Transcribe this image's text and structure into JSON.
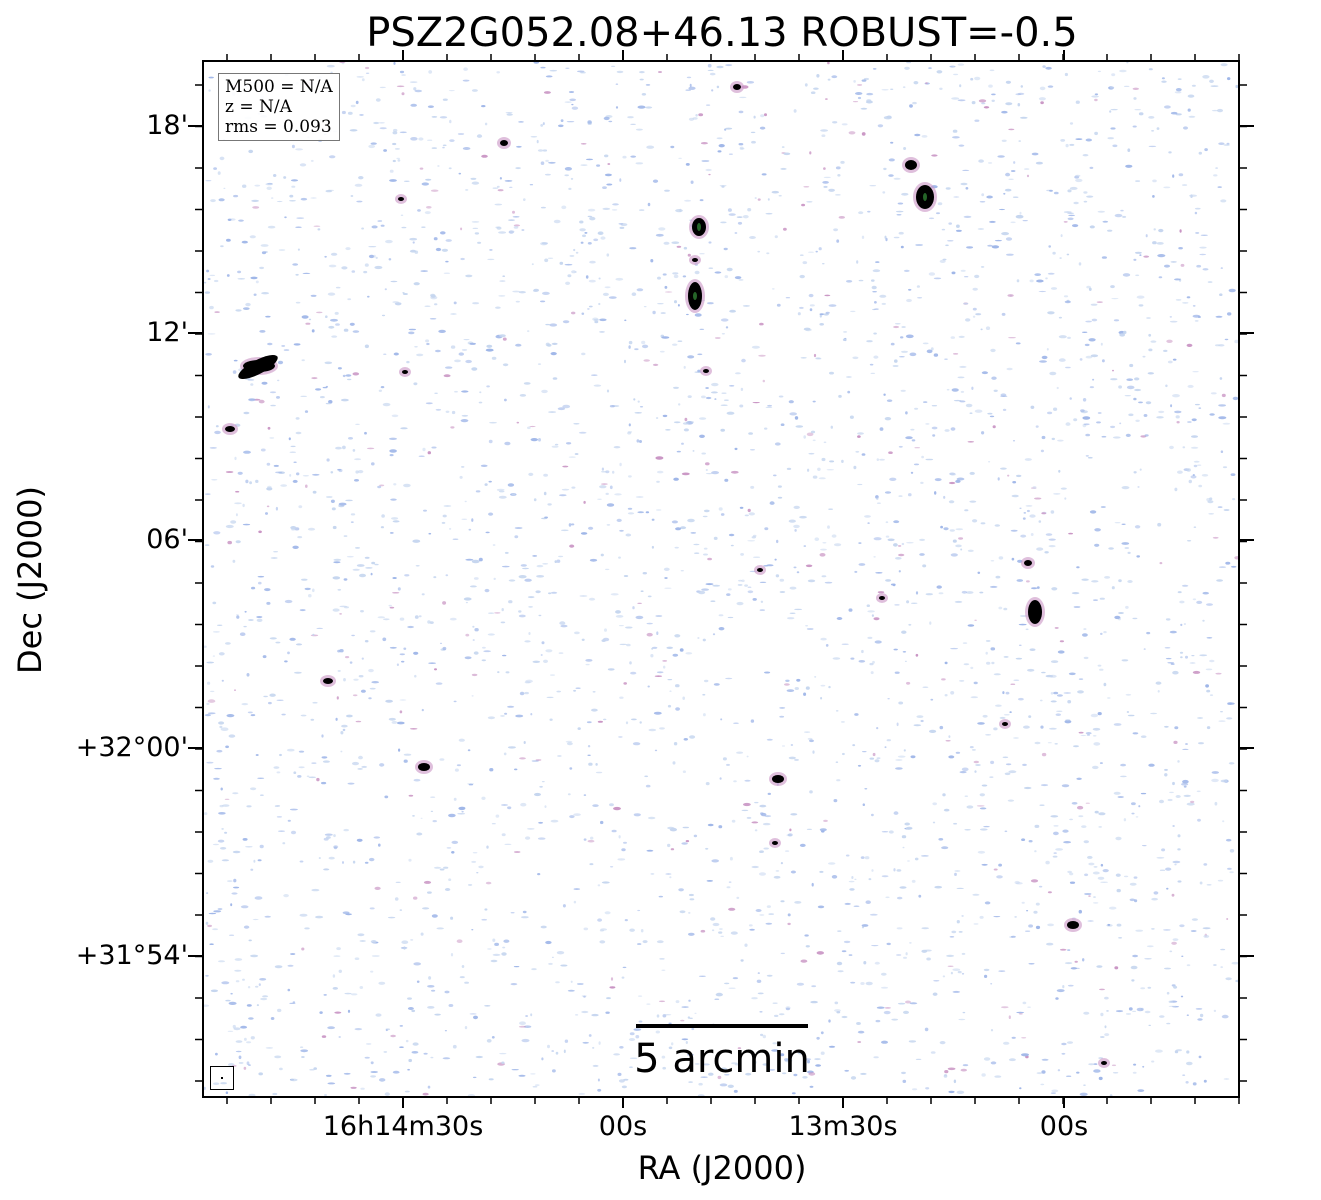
{
  "title": "PSZ2G052.08+46.13 ROBUST=-0.5",
  "legend": {
    "m500": "M500 = N/A",
    "z": "z = N/A",
    "rms": "rms = 0.093"
  },
  "axes": {
    "xlabel": "RA (J2000)",
    "ylabel": "Dec (J2000)",
    "xticks": [
      "16h14m30s",
      "00s",
      "13m30s",
      "00s"
    ],
    "yticks": [
      "18'",
      "12'",
      "06'",
      "+32°00'",
      "+31°54'"
    ]
  },
  "scalebar": {
    "label": "5 arcmin"
  },
  "colors": {
    "noise_blue": "#9fb6e8",
    "noise_light": "#c6d6ef",
    "noise_pink": "#c995c4",
    "source_core": "#000000",
    "source_green": "#2e7d32"
  }
}
